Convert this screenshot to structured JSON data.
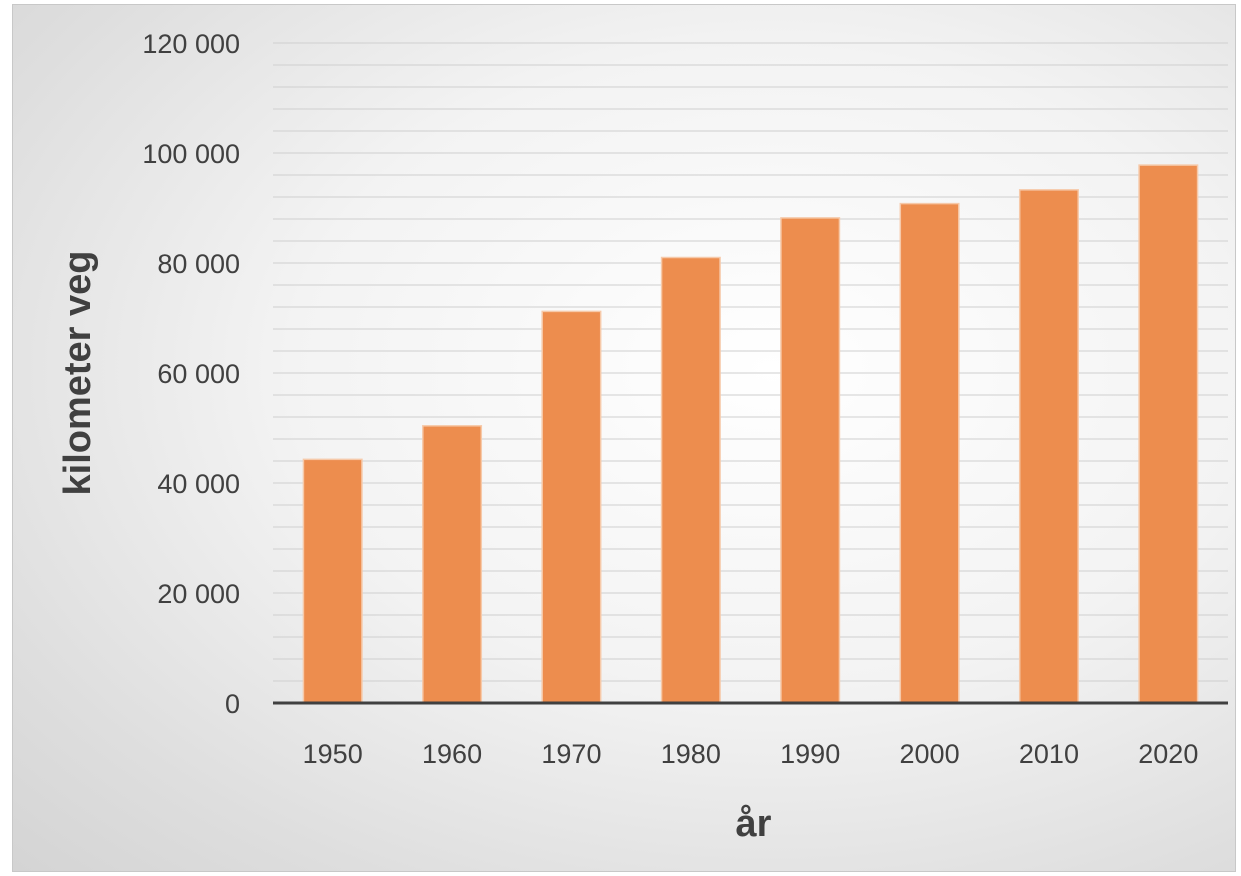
{
  "chart_data": {
    "type": "bar",
    "title": "",
    "xlabel": "år",
    "ylabel": "kilometer veg",
    "categories": [
      "1950",
      "1960",
      "1970",
      "1980",
      "1990",
      "2000",
      "2010",
      "2020"
    ],
    "values": [
      44300,
      50400,
      71200,
      81000,
      88200,
      90800,
      93300,
      97800
    ],
    "ylim": [
      0,
      120000
    ],
    "yticks": [
      0,
      20000,
      40000,
      60000,
      80000,
      100000,
      120000
    ],
    "ytick_labels": [
      "0",
      "20 000",
      "40 000",
      "60 000",
      "80 000",
      "100 000",
      "120 000"
    ],
    "grid": true,
    "minor_gridlines": true,
    "legend": "none",
    "bar_color": "#ED8D4E",
    "bar_edge_color": "#F6C9A9",
    "gridline_color": "#cfcfcf",
    "axis_color": "#404040"
  }
}
